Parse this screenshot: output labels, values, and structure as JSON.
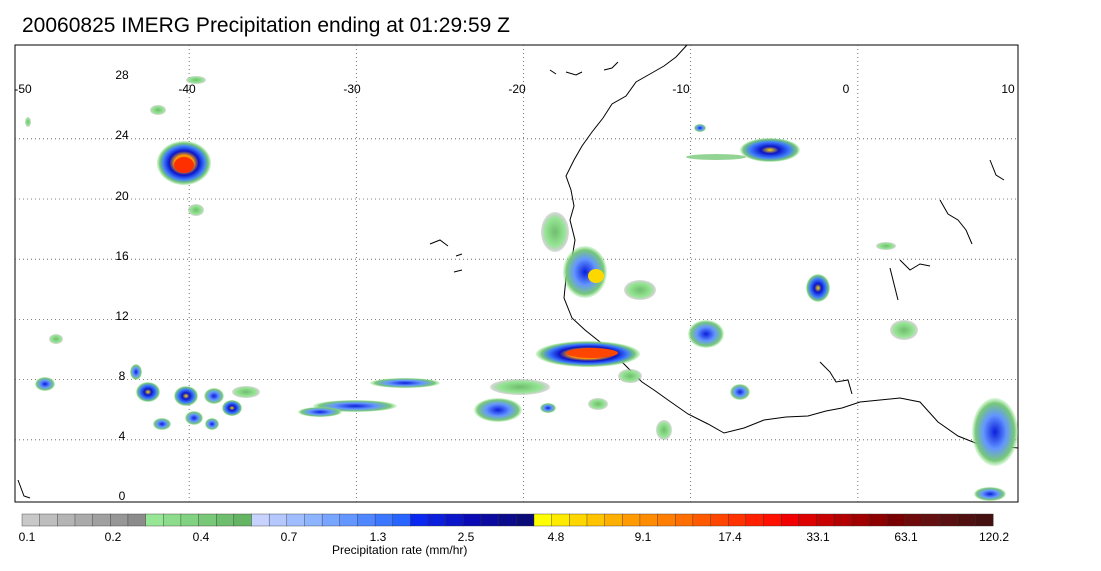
{
  "title": "20060825 IMERG Precipitation ending at 01:29:59 Z",
  "map": {
    "lon_labels": [
      "-50",
      "-40",
      "-30",
      "-20",
      "-10",
      "0",
      "10"
    ],
    "lat_labels": [
      "28",
      "24",
      "20",
      "16",
      "12",
      "8",
      "4",
      "0"
    ],
    "grid": "dotted"
  },
  "colorbar": {
    "caption": "Precipitation rate (mm/hr)",
    "tick_labels": [
      "0.1",
      "0.2",
      "0.4",
      "0.7",
      "1.3",
      "2.5",
      "4.8",
      "9.1",
      "17.4",
      "33.1",
      "63.1",
      "120.2"
    ],
    "colors": [
      "#c8c8c8",
      "#bebebe",
      "#b4b4b4",
      "#aaaaaa",
      "#a0a0a0",
      "#969696",
      "#8c8c8c",
      "#96e696",
      "#8cdc8c",
      "#82d282",
      "#78c878",
      "#6ebe6e",
      "#64b464",
      "#c8d2ff",
      "#b4c8ff",
      "#a0beff",
      "#8cb4ff",
      "#78a5ff",
      "#6496ff",
      "#5087ff",
      "#3c78ff",
      "#2864ff",
      "#0a28f0",
      "#0a1edc",
      "#0a14c8",
      "#0a0ab4",
      "#0a0aa0",
      "#0a0a8c",
      "#0a0a78",
      "#ffff00",
      "#ffeb00",
      "#ffd700",
      "#ffc300",
      "#ffaf00",
      "#ff9b00",
      "#ff8c00",
      "#ff7d00",
      "#ff6e00",
      "#ff5a00",
      "#ff4600",
      "#ff3200",
      "#ff2000",
      "#ff1000",
      "#f00000",
      "#dc0000",
      "#c80000",
      "#b40000",
      "#a00000",
      "#8c0000",
      "#780000",
      "#6e0a0a",
      "#641010",
      "#5a1010",
      "#501010",
      "#461010"
    ]
  }
}
